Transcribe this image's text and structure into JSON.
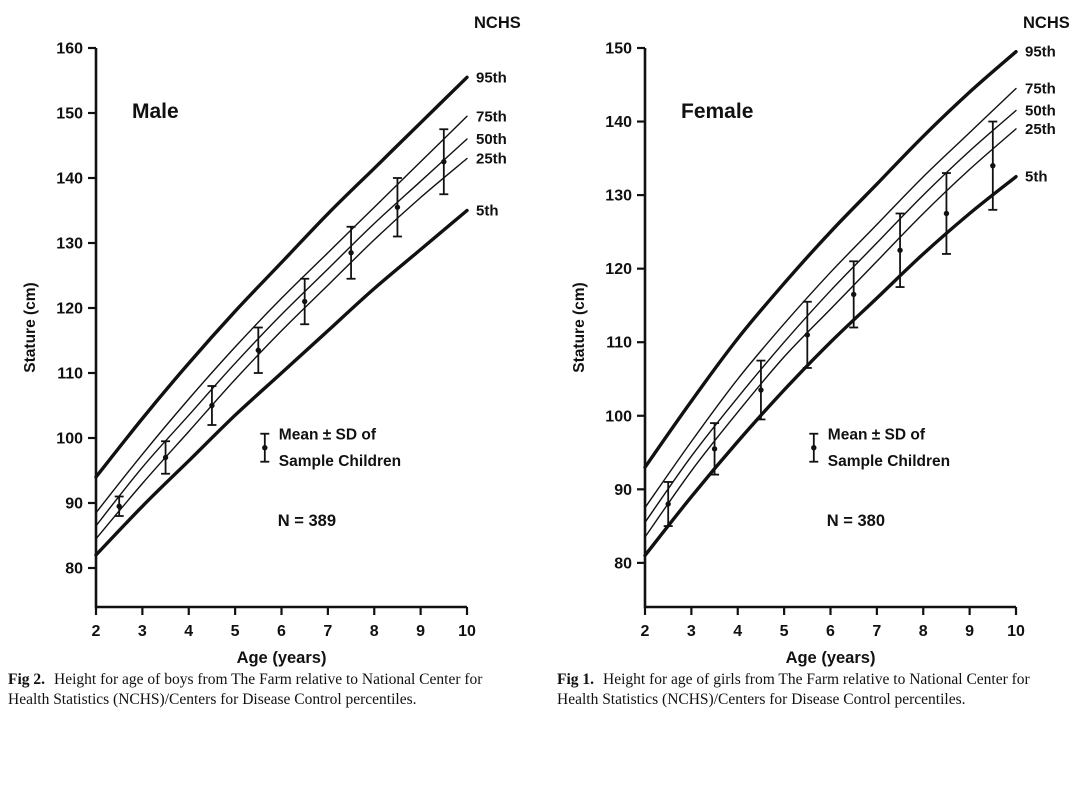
{
  "figures": [
    {
      "caption_label": "Fig 2.",
      "caption_text": "Height for age of boys from The Farm relative to National Center for Health Statistics (NCHS)/Centers for Disease Control percentiles.",
      "chart_index": 0
    },
    {
      "caption_label": "Fig 1.",
      "caption_text": "Height for age of girls from The Farm relative to National Center for Health Statistics (NCHS)/Centers for Disease Control percentiles.",
      "chart_index": 1
    }
  ],
  "chart_data": [
    {
      "type": "line",
      "title": "Male",
      "corner_label": "NCHS",
      "xlabel": "Age (years)",
      "ylabel": "Stature (cm)",
      "xlim": [
        2,
        10
      ],
      "ylim": [
        74,
        160
      ],
      "xticks": [
        2,
        3,
        4,
        5,
        6,
        7,
        8,
        9,
        10
      ],
      "yticks": [
        160,
        150,
        140,
        130,
        120,
        110,
        100,
        90,
        80
      ],
      "x": [
        2,
        3,
        4,
        5,
        6,
        7,
        8,
        9,
        10
      ],
      "series": [
        {
          "name": "95th",
          "thick": true,
          "values": [
            94,
            103,
            111.5,
            119.5,
            127,
            134.5,
            141.5,
            148.5,
            155.5
          ]
        },
        {
          "name": "75th",
          "thick": false,
          "values": [
            88.5,
            97.5,
            106,
            114,
            121.5,
            128.5,
            135.5,
            142.5,
            149.5
          ]
        },
        {
          "name": "50th",
          "thick": false,
          "values": [
            86.5,
            95.5,
            103.5,
            111.5,
            119,
            126,
            133,
            139.5,
            146
          ]
        },
        {
          "name": "25th",
          "thick": false,
          "values": [
            84.5,
            93,
            101,
            109,
            116.5,
            123.5,
            130.5,
            137,
            143
          ]
        },
        {
          "name": "5th",
          "thick": true,
          "values": [
            82,
            89.5,
            96.5,
            103.5,
            110,
            116.5,
            123,
            129,
            135
          ]
        }
      ],
      "sample": {
        "legend_line1": "Mean ± SD of",
        "legend_line2": "Sample Children",
        "n_label": "N = 389",
        "ages": [
          2.5,
          3.5,
          4.5,
          5.5,
          6.5,
          7.5,
          8.5,
          9.5
        ],
        "means": [
          89.5,
          97,
          105,
          113.5,
          121,
          128.5,
          135.5,
          142.5
        ],
        "sds": [
          1.5,
          2.5,
          3,
          3.5,
          3.5,
          4,
          4.5,
          5
        ]
      }
    },
    {
      "type": "line",
      "title": "Female",
      "corner_label": "NCHS",
      "xlabel": "Age (years)",
      "ylabel": "Stature (cm)",
      "xlim": [
        2,
        10
      ],
      "ylim": [
        74,
        150
      ],
      "xticks": [
        2,
        3,
        4,
        5,
        6,
        7,
        8,
        9,
        10
      ],
      "yticks": [
        150,
        140,
        130,
        120,
        110,
        100,
        90,
        80
      ],
      "x": [
        2,
        3,
        4,
        5,
        6,
        7,
        8,
        9,
        10
      ],
      "series": [
        {
          "name": "95th",
          "thick": true,
          "values": [
            93,
            102,
            110.5,
            118,
            125,
            131.5,
            138,
            144,
            149.5
          ]
        },
        {
          "name": "75th",
          "thick": false,
          "values": [
            87.5,
            96.5,
            105,
            112.5,
            119.5,
            126,
            132.5,
            138.5,
            144.5
          ]
        },
        {
          "name": "50th",
          "thick": false,
          "values": [
            85.5,
            94.5,
            102.5,
            110,
            117,
            123.5,
            130,
            136,
            141.5
          ]
        },
        {
          "name": "25th",
          "thick": false,
          "values": [
            83.5,
            92.5,
            100.5,
            108,
            114.5,
            121,
            127.5,
            133.5,
            139
          ]
        },
        {
          "name": "5th",
          "thick": true,
          "values": [
            81,
            89,
            96.5,
            103.5,
            110,
            116,
            122,
            127.5,
            132.5
          ]
        }
      ],
      "sample": {
        "legend_line1": "Mean ± SD of",
        "legend_line2": "Sample Children",
        "n_label": "N = 380",
        "ages": [
          2.5,
          3.5,
          4.5,
          5.5,
          6.5,
          7.5,
          8.5,
          9.5
        ],
        "means": [
          88,
          95.5,
          103.5,
          111,
          116.5,
          122.5,
          127.5,
          134
        ],
        "sds": [
          3,
          3.5,
          4,
          4.5,
          4.5,
          5,
          5.5,
          6
        ]
      }
    }
  ]
}
